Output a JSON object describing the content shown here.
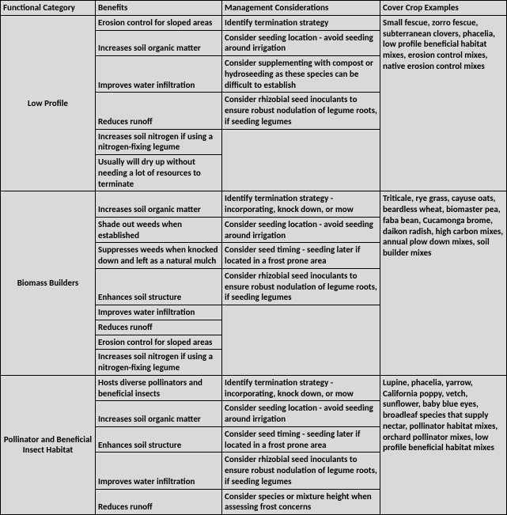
{
  "headers": {
    "c1": "Functional Category",
    "c2": "Benefits",
    "c3": "Management Considerations",
    "c4": "Cover Crop Examples"
  },
  "sections": [
    {
      "category": "Low Profile",
      "examples": "Small fescue, zorro fescue, subterranean clovers, phacelia, low profile beneficial habitat mixes, erosion control mixes, native erosion control mixes",
      "rows": [
        {
          "b": "Erosion control for sloped areas",
          "m": "Identify termination strategy"
        },
        {
          "b": "Increases soil organic matter",
          "m": "Consider seeding location - avoid seeding around irrigation"
        },
        {
          "b": "Improves water infiltration",
          "m": "Consider supplementing with compost or hydroseeding as these species can be difficult to establish"
        },
        {
          "b": "Reduces runoff",
          "m": "Consider rhizobial seed inoculants to ensure robust nodulation of legume roots, if seeding legumes"
        },
        {
          "b": "Increases soil nitrogen if using a nitrogen-fixing legume",
          "m": ""
        },
        {
          "b": "Usually will dry up without needing a lot of resources to terminate",
          "m": ""
        }
      ],
      "mgmt_merge_start": 4,
      "mgmt_merge_span": 2
    },
    {
      "category": "Biomass Builders",
      "examples": "Triticale, rye grass, cayuse oats, beardless wheat, biomaster pea, faba bean, Cucamonga brome, daikon radish, high carbon mixes, annual plow down mixes, soil builder mixes",
      "rows": [
        {
          "b": "Increases soil organic matter",
          "m": "Identify termination strategy - incorporating, knock down, or mow"
        },
        {
          "b": "Shade out weeds when established",
          "m": "Consider seeding location - avoid seeding around irrigation"
        },
        {
          "b": "Suppresses weeds when knocked down and left as a natural mulch",
          "m": "Consider seed timing - seeding later if located in a frost prone area"
        },
        {
          "b": "Enhances soil structure",
          "m": "Consider rhizobial seed inoculants to ensure robust nodulation of legume roots, if seeding legumes"
        },
        {
          "b": "Improves water infiltration",
          "m": ""
        },
        {
          "b": "Reduces runoff",
          "m": ""
        },
        {
          "b": "Erosion control for sloped areas",
          "m": ""
        },
        {
          "b": "Increases soil nitrogen if using a nitrogen-fixing legume",
          "m": ""
        }
      ],
      "mgmt_merge_start": 4,
      "mgmt_merge_span": 4
    },
    {
      "category": "Pollinator and Beneficial Insect Habitat",
      "examples": "Lupine, phacelia, yarrow, California poppy, vetch, sunflower, baby blue eyes, broadleaf species that supply nectar, pollinator habitat mixes, orchard pollinator mixes, low profile beneficial habitat mixes",
      "rows": [
        {
          "b": "Hosts diverse pollinators and beneficial insects",
          "m": "Identify termination strategy - incorporating, knock down, or mow"
        },
        {
          "b": "Increases soil organic matter",
          "m": "Consider seeding location - avoid seeding around irrigation"
        },
        {
          "b": "Enhances soil structure",
          "m": "Consider seed timing - seeding later if located in a frost prone area"
        },
        {
          "b": "Improves water infiltration",
          "m": "Consider rhizobial seed inoculants to ensure robust nodulation of legume roots, if seeding legumes"
        },
        {
          "b": "Reduces runoff",
          "m": "Consider species or mixture height when assessing frost concerns"
        }
      ],
      "mgmt_merge_start": -1,
      "mgmt_merge_span": 0
    }
  ]
}
